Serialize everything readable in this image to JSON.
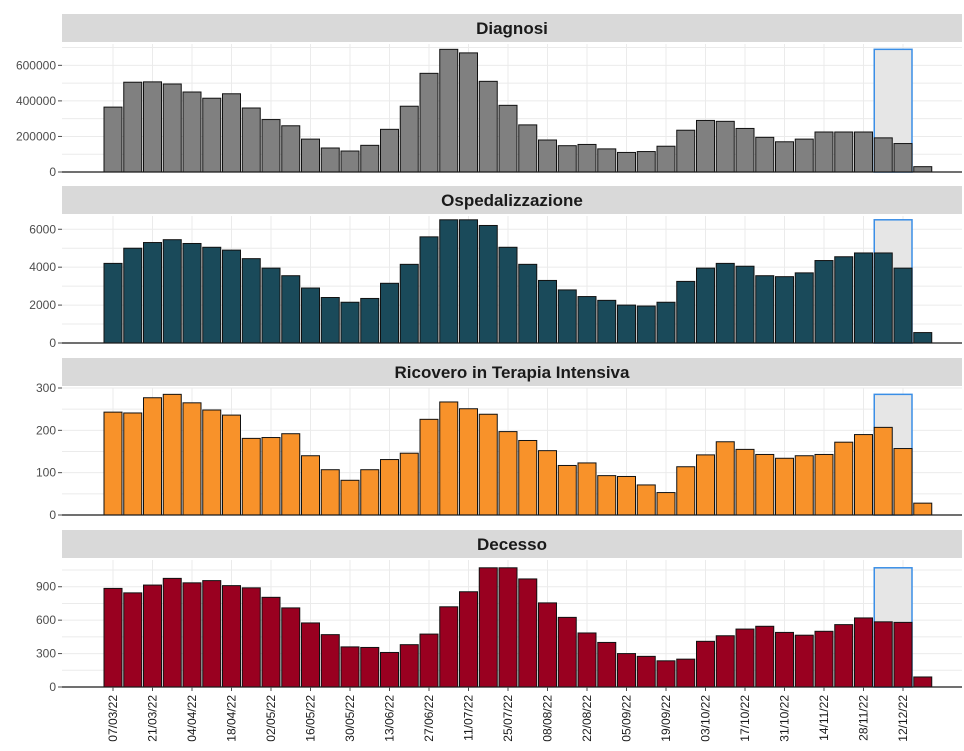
{
  "chart_data": {
    "type": "bar",
    "categories": [
      "07/03/22",
      "14/03/22",
      "21/03/22",
      "28/03/22",
      "04/04/22",
      "11/04/22",
      "18/04/22",
      "25/04/22",
      "02/05/22",
      "09/05/22",
      "16/05/22",
      "23/05/22",
      "30/05/22",
      "06/06/22",
      "13/06/22",
      "20/06/22",
      "27/06/22",
      "04/07/22",
      "11/07/22",
      "18/07/22",
      "25/07/22",
      "01/08/22",
      "08/08/22",
      "15/08/22",
      "22/08/22",
      "29/08/22",
      "05/09/22",
      "12/09/22",
      "19/09/22",
      "26/09/22",
      "03/10/22",
      "10/10/22",
      "17/10/22",
      "24/10/22",
      "31/10/22",
      "07/11/22",
      "14/11/22",
      "21/11/22",
      "28/11/22",
      "05/12/22",
      "12/12/22",
      "19/12/22"
    ],
    "tick_labels": [
      "07/03/22",
      "21/03/22",
      "04/04/22",
      "18/04/22",
      "02/05/22",
      "16/05/22",
      "30/05/22",
      "13/06/22",
      "27/06/22",
      "11/07/22",
      "25/07/22",
      "08/08/22",
      "22/08/22",
      "05/09/22",
      "19/09/22",
      "03/10/22",
      "17/10/22",
      "31/10/22",
      "14/11/22",
      "28/11/22",
      "12/12/22"
    ],
    "highlight": {
      "from_index": 39,
      "to_index": 40,
      "fill": "#e6e6e6",
      "stroke": "#3a8ee6"
    },
    "grid": true,
    "panels": [
      {
        "title": "Diagnosi",
        "color": "#808080",
        "ylim": [
          0,
          720000
        ],
        "yticks": [
          0,
          200000,
          400000,
          600000
        ],
        "ytick_labels": [
          "0",
          "200000",
          "400000",
          "600000"
        ],
        "values": [
          365000,
          505000,
          507000,
          495000,
          450000,
          415000,
          440000,
          360000,
          295000,
          260000,
          185000,
          135000,
          118000,
          150000,
          240000,
          370000,
          555000,
          690000,
          670000,
          510000,
          375000,
          265000,
          180000,
          148000,
          155000,
          130000,
          110000,
          115000,
          145000,
          235000,
          290000,
          285000,
          245000,
          195000,
          170000,
          185000,
          225000,
          225000,
          225000,
          192000,
          160000,
          30000
        ]
      },
      {
        "title": "Ospedalizzazione",
        "color": "#1a4a5a",
        "ylim": [
          0,
          6700
        ],
        "yticks": [
          0,
          2000,
          4000,
          6000
        ],
        "ytick_labels": [
          "0",
          "2000",
          "4000",
          "6000"
        ],
        "values": [
          4200,
          5000,
          5300,
          5450,
          5250,
          5050,
          4900,
          4450,
          3950,
          3550,
          2900,
          2400,
          2150,
          2350,
          3150,
          4150,
          5600,
          6500,
          6500,
          6200,
          5050,
          4150,
          3300,
          2800,
          2450,
          2250,
          2000,
          1950,
          2150,
          3250,
          3950,
          4200,
          4050,
          3550,
          3500,
          3700,
          4350,
          4550,
          4750,
          4750,
          3950,
          550
        ]
      },
      {
        "title": "Ricovero in Terapia Intensiva",
        "color": "#f8922a",
        "ylim": [
          0,
          300
        ],
        "yticks": [
          0,
          100,
          200,
          300
        ],
        "ytick_labels": [
          "0",
          "100",
          "200",
          "300"
        ],
        "values": [
          243,
          241,
          277,
          285,
          265,
          248,
          236,
          181,
          183,
          192,
          140,
          107,
          82,
          107,
          131,
          146,
          226,
          267,
          251,
          238,
          197,
          176,
          152,
          117,
          123,
          93,
          91,
          71,
          53,
          114,
          142,
          173,
          155,
          143,
          134,
          140,
          143,
          172,
          190,
          207,
          157,
          28
        ]
      },
      {
        "title": "Decesso",
        "color": "#990020",
        "ylim": [
          0,
          1140
        ],
        "yticks": [
          0,
          300,
          600,
          900
        ],
        "ytick_labels": [
          "0",
          "300",
          "600",
          "900"
        ],
        "values": [
          885,
          845,
          915,
          975,
          935,
          955,
          910,
          890,
          805,
          710,
          575,
          470,
          360,
          355,
          310,
          380,
          475,
          720,
          855,
          1070,
          1070,
          970,
          755,
          625,
          485,
          400,
          300,
          275,
          235,
          250,
          410,
          460,
          520,
          545,
          490,
          465,
          500,
          560,
          620,
          585,
          580,
          90
        ]
      }
    ]
  }
}
